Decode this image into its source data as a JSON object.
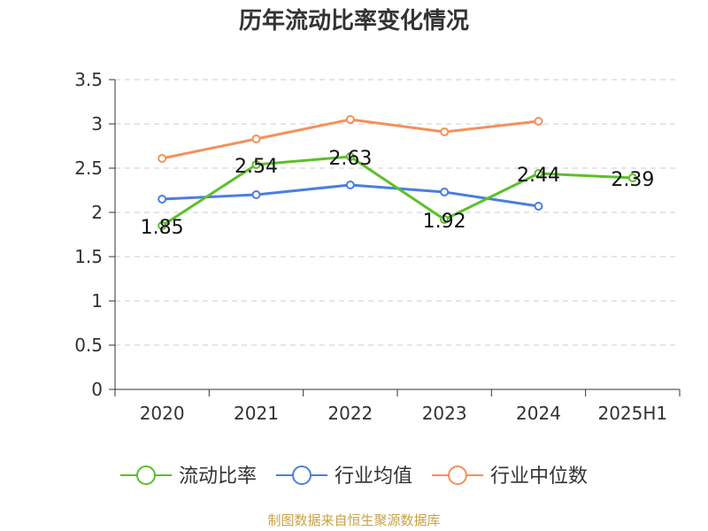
{
  "colors": {
    "current_ratio": "#5cbf2a",
    "industry_mean": "#4a7fde",
    "industry_median": "#f5905b",
    "grid": "#cccccc",
    "axis": "#333333",
    "source": "#c7a347"
  },
  "source_text": "制图数据来自恒生聚源数据库",
  "chart_data": {
    "type": "line",
    "title": "历年流动比率变化情况",
    "xlabel": "",
    "ylabel": "",
    "categories": [
      "2020",
      "2021",
      "2022",
      "2023",
      "2024",
      "2025H1"
    ],
    "ylim": [
      0,
      3.5
    ],
    "yticks": [
      "0",
      "0.5",
      "1",
      "1.5",
      "2",
      "2.5",
      "3",
      "3.5"
    ],
    "grid": true,
    "legend_position": "bottom",
    "series": [
      {
        "name": "流动比率",
        "color_key": "current_ratio",
        "values": [
          1.85,
          2.54,
          2.63,
          1.92,
          2.44,
          2.39
        ],
        "labels": [
          "1.85",
          "2.54",
          "2.63",
          "1.92",
          "2.44",
          "2.39"
        ]
      },
      {
        "name": "行业均值",
        "color_key": "industry_mean",
        "values": [
          2.15,
          2.2,
          2.31,
          2.23,
          2.07,
          null
        ]
      },
      {
        "name": "行业中位数",
        "color_key": "industry_median",
        "values": [
          2.61,
          2.83,
          3.05,
          2.91,
          3.03,
          null
        ]
      }
    ]
  }
}
